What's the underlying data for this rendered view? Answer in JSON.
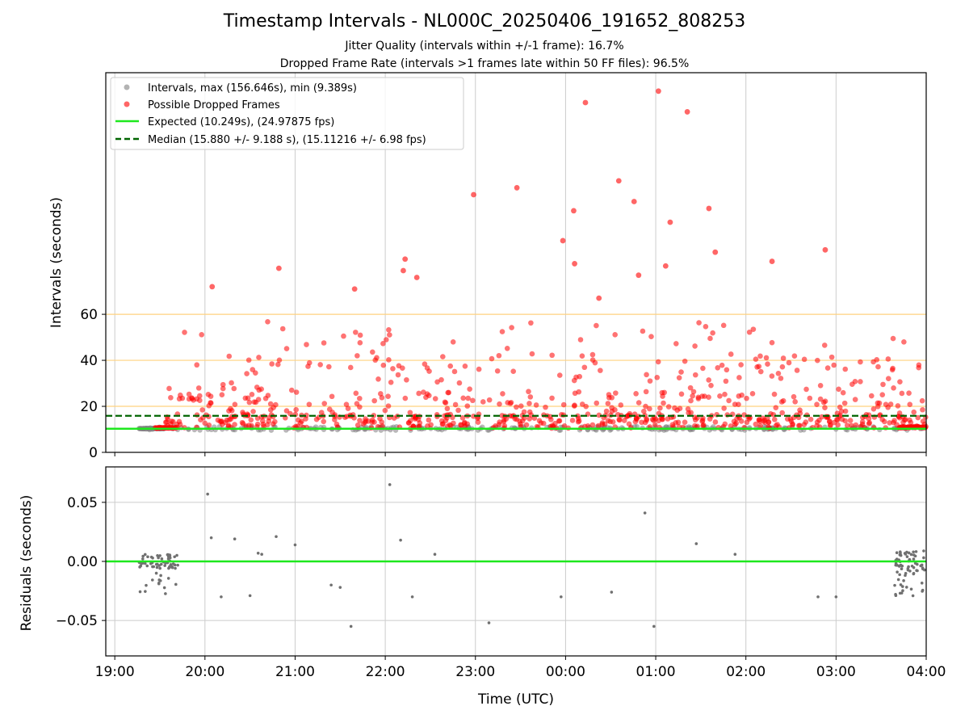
{
  "title": "Timestamp Intervals - NL000C_20250406_191652_808253",
  "subtitle_1": "Jitter Quality (intervals within +/-1 frame): 16.7%",
  "subtitle_2": "Dropped Frame Rate (intervals >1 frames late within 50 FF files): 96.5%",
  "colors": {
    "interval_points": "#808080",
    "dropped_points": "#ff0000",
    "expected_line": "#1ee81e",
    "median_line": "#006400",
    "threshold_lines": "#ffd27f",
    "grid": "#cccccc"
  },
  "chart_data": [
    {
      "type": "scatter",
      "panel": "intervals",
      "ylabel": "Intervals (seconds)",
      "xlabel": "",
      "x_unit": "hours since 19:00 UTC",
      "xlim": [
        -0.1,
        9.0
      ],
      "ylim": [
        0,
        165
      ],
      "yticks": [
        0,
        20,
        40,
        60
      ],
      "xticks": [
        0,
        1,
        2,
        3,
        4,
        5,
        6,
        7,
        8,
        9
      ],
      "grid": "vertical",
      "legend_position": "top-left",
      "legend": [
        "Intervals, max (156.646s), min (9.389s)",
        "Possible Dropped Frames",
        "Expected (10.249s), (24.97875 fps)",
        "Median (15.880 +/- 9.188 s), (15.11216 +/- 6.98 fps)"
      ],
      "expected_interval": 10.249,
      "median_interval": 15.88,
      "threshold_lines": [
        20,
        40,
        60
      ],
      "series": [
        {
          "name": "Possible Dropped Frames",
          "highlights": [
            [
              5.22,
              152
            ],
            [
              6.03,
              157
            ],
            [
              6.35,
              148
            ],
            [
              3.98,
              112
            ],
            [
              5.09,
              105
            ],
            [
              5.59,
              118
            ],
            [
              6.59,
              106
            ],
            [
              5.76,
              109
            ],
            [
              4.97,
              92
            ],
            [
              6.16,
              100
            ],
            [
              7.88,
              88
            ],
            [
              5.1,
              82
            ],
            [
              4.46,
              115
            ],
            [
              3.22,
              84
            ],
            [
              3.2,
              79
            ],
            [
              1.82,
              80
            ],
            [
              1.08,
              72
            ],
            [
              6.66,
              87
            ],
            [
              3.35,
              76
            ],
            [
              5.81,
              77
            ],
            [
              2.66,
              71
            ],
            [
              5.37,
              67
            ],
            [
              7.29,
              83
            ],
            [
              6.11,
              81
            ]
          ],
          "count": 900,
          "xrange": [
            0.55,
            9.0
          ],
          "y_min": 10.5
        }
      ],
      "intervals_series": {
        "name": "Intervals, max (156.646s), min (9.389s)",
        "count": 1000,
        "xrange": [
          0.27,
          9.0
        ]
      }
    },
    {
      "type": "scatter",
      "panel": "residuals",
      "xlabel": "Time (UTC)",
      "ylabel": "Residuals (seconds)",
      "xlim": [
        -0.1,
        9.0
      ],
      "ylim": [
        -0.08,
        0.08
      ],
      "yticks": [
        0.05,
        0.0,
        -0.05
      ],
      "ytick_labels": [
        "0.05",
        "0.00",
        "−0.05"
      ],
      "xticks": [
        0,
        1,
        2,
        3,
        4,
        5,
        6,
        7,
        8,
        9
      ],
      "xtick_labels": [
        "19:00",
        "20:00",
        "21:00",
        "22:00",
        "23:00",
        "00:00",
        "01:00",
        "02:00",
        "03:00",
        "04:00"
      ],
      "grid": "both",
      "zero_line": 0,
      "points": [
        [
          1.03,
          0.057
        ],
        [
          3.05,
          0.065
        ],
        [
          5.88,
          0.041
        ],
        [
          1.07,
          0.02
        ],
        [
          1.33,
          0.019
        ],
        [
          1.79,
          0.021
        ],
        [
          3.17,
          0.018
        ],
        [
          2.0,
          0.014
        ],
        [
          6.45,
          0.015
        ],
        [
          1.59,
          0.007
        ],
        [
          1.63,
          0.006
        ],
        [
          3.55,
          0.006
        ],
        [
          6.88,
          0.006
        ],
        [
          2.62,
          -0.055
        ],
        [
          4.15,
          -0.052
        ],
        [
          5.98,
          -0.055
        ],
        [
          4.95,
          -0.03
        ],
        [
          5.51,
          -0.026
        ],
        [
          2.4,
          -0.02
        ],
        [
          2.5,
          -0.022
        ],
        [
          3.3,
          -0.03
        ],
        [
          7.8,
          -0.03
        ],
        [
          8.0,
          -0.03
        ],
        [
          1.18,
          -0.03
        ],
        [
          1.5,
          -0.029
        ]
      ],
      "cluster_left": {
        "xrange": [
          0.27,
          0.7
        ]
      },
      "cluster_right": {
        "xrange": [
          8.65,
          9.0
        ]
      }
    }
  ]
}
